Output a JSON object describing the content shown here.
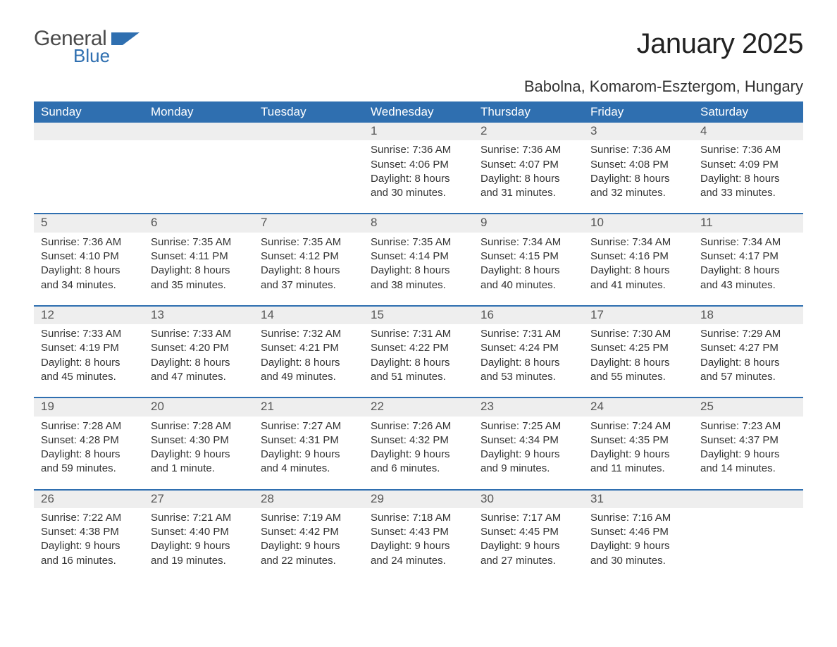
{
  "brand": {
    "name1": "General",
    "name2": "Blue",
    "mark_color": "#2f6fb0",
    "text_gray": "#4a4a4a"
  },
  "title": "January 2025",
  "location": "Babolna, Komarom-Esztergom, Hungary",
  "header_bg": "#2f6fb0",
  "header_fg": "#ffffff",
  "strip_bg": "#eeeeee",
  "border_color": "#2f6fb0",
  "day_names": [
    "Sunday",
    "Monday",
    "Tuesday",
    "Wednesday",
    "Thursday",
    "Friday",
    "Saturday"
  ],
  "weeks": [
    [
      null,
      null,
      null,
      {
        "d": "1",
        "sr": "Sunrise: 7:36 AM",
        "ss": "Sunset: 4:06 PM",
        "dl1": "Daylight: 8 hours",
        "dl2": "and 30 minutes."
      },
      {
        "d": "2",
        "sr": "Sunrise: 7:36 AM",
        "ss": "Sunset: 4:07 PM",
        "dl1": "Daylight: 8 hours",
        "dl2": "and 31 minutes."
      },
      {
        "d": "3",
        "sr": "Sunrise: 7:36 AM",
        "ss": "Sunset: 4:08 PM",
        "dl1": "Daylight: 8 hours",
        "dl2": "and 32 minutes."
      },
      {
        "d": "4",
        "sr": "Sunrise: 7:36 AM",
        "ss": "Sunset: 4:09 PM",
        "dl1": "Daylight: 8 hours",
        "dl2": "and 33 minutes."
      }
    ],
    [
      {
        "d": "5",
        "sr": "Sunrise: 7:36 AM",
        "ss": "Sunset: 4:10 PM",
        "dl1": "Daylight: 8 hours",
        "dl2": "and 34 minutes."
      },
      {
        "d": "6",
        "sr": "Sunrise: 7:35 AM",
        "ss": "Sunset: 4:11 PM",
        "dl1": "Daylight: 8 hours",
        "dl2": "and 35 minutes."
      },
      {
        "d": "7",
        "sr": "Sunrise: 7:35 AM",
        "ss": "Sunset: 4:12 PM",
        "dl1": "Daylight: 8 hours",
        "dl2": "and 37 minutes."
      },
      {
        "d": "8",
        "sr": "Sunrise: 7:35 AM",
        "ss": "Sunset: 4:14 PM",
        "dl1": "Daylight: 8 hours",
        "dl2": "and 38 minutes."
      },
      {
        "d": "9",
        "sr": "Sunrise: 7:34 AM",
        "ss": "Sunset: 4:15 PM",
        "dl1": "Daylight: 8 hours",
        "dl2": "and 40 minutes."
      },
      {
        "d": "10",
        "sr": "Sunrise: 7:34 AM",
        "ss": "Sunset: 4:16 PM",
        "dl1": "Daylight: 8 hours",
        "dl2": "and 41 minutes."
      },
      {
        "d": "11",
        "sr": "Sunrise: 7:34 AM",
        "ss": "Sunset: 4:17 PM",
        "dl1": "Daylight: 8 hours",
        "dl2": "and 43 minutes."
      }
    ],
    [
      {
        "d": "12",
        "sr": "Sunrise: 7:33 AM",
        "ss": "Sunset: 4:19 PM",
        "dl1": "Daylight: 8 hours",
        "dl2": "and 45 minutes."
      },
      {
        "d": "13",
        "sr": "Sunrise: 7:33 AM",
        "ss": "Sunset: 4:20 PM",
        "dl1": "Daylight: 8 hours",
        "dl2": "and 47 minutes."
      },
      {
        "d": "14",
        "sr": "Sunrise: 7:32 AM",
        "ss": "Sunset: 4:21 PM",
        "dl1": "Daylight: 8 hours",
        "dl2": "and 49 minutes."
      },
      {
        "d": "15",
        "sr": "Sunrise: 7:31 AM",
        "ss": "Sunset: 4:22 PM",
        "dl1": "Daylight: 8 hours",
        "dl2": "and 51 minutes."
      },
      {
        "d": "16",
        "sr": "Sunrise: 7:31 AM",
        "ss": "Sunset: 4:24 PM",
        "dl1": "Daylight: 8 hours",
        "dl2": "and 53 minutes."
      },
      {
        "d": "17",
        "sr": "Sunrise: 7:30 AM",
        "ss": "Sunset: 4:25 PM",
        "dl1": "Daylight: 8 hours",
        "dl2": "and 55 minutes."
      },
      {
        "d": "18",
        "sr": "Sunrise: 7:29 AM",
        "ss": "Sunset: 4:27 PM",
        "dl1": "Daylight: 8 hours",
        "dl2": "and 57 minutes."
      }
    ],
    [
      {
        "d": "19",
        "sr": "Sunrise: 7:28 AM",
        "ss": "Sunset: 4:28 PM",
        "dl1": "Daylight: 8 hours",
        "dl2": "and 59 minutes."
      },
      {
        "d": "20",
        "sr": "Sunrise: 7:28 AM",
        "ss": "Sunset: 4:30 PM",
        "dl1": "Daylight: 9 hours",
        "dl2": "and 1 minute."
      },
      {
        "d": "21",
        "sr": "Sunrise: 7:27 AM",
        "ss": "Sunset: 4:31 PM",
        "dl1": "Daylight: 9 hours",
        "dl2": "and 4 minutes."
      },
      {
        "d": "22",
        "sr": "Sunrise: 7:26 AM",
        "ss": "Sunset: 4:32 PM",
        "dl1": "Daylight: 9 hours",
        "dl2": "and 6 minutes."
      },
      {
        "d": "23",
        "sr": "Sunrise: 7:25 AM",
        "ss": "Sunset: 4:34 PM",
        "dl1": "Daylight: 9 hours",
        "dl2": "and 9 minutes."
      },
      {
        "d": "24",
        "sr": "Sunrise: 7:24 AM",
        "ss": "Sunset: 4:35 PM",
        "dl1": "Daylight: 9 hours",
        "dl2": "and 11 minutes."
      },
      {
        "d": "25",
        "sr": "Sunrise: 7:23 AM",
        "ss": "Sunset: 4:37 PM",
        "dl1": "Daylight: 9 hours",
        "dl2": "and 14 minutes."
      }
    ],
    [
      {
        "d": "26",
        "sr": "Sunrise: 7:22 AM",
        "ss": "Sunset: 4:38 PM",
        "dl1": "Daylight: 9 hours",
        "dl2": "and 16 minutes."
      },
      {
        "d": "27",
        "sr": "Sunrise: 7:21 AM",
        "ss": "Sunset: 4:40 PM",
        "dl1": "Daylight: 9 hours",
        "dl2": "and 19 minutes."
      },
      {
        "d": "28",
        "sr": "Sunrise: 7:19 AM",
        "ss": "Sunset: 4:42 PM",
        "dl1": "Daylight: 9 hours",
        "dl2": "and 22 minutes."
      },
      {
        "d": "29",
        "sr": "Sunrise: 7:18 AM",
        "ss": "Sunset: 4:43 PM",
        "dl1": "Daylight: 9 hours",
        "dl2": "and 24 minutes."
      },
      {
        "d": "30",
        "sr": "Sunrise: 7:17 AM",
        "ss": "Sunset: 4:45 PM",
        "dl1": "Daylight: 9 hours",
        "dl2": "and 27 minutes."
      },
      {
        "d": "31",
        "sr": "Sunrise: 7:16 AM",
        "ss": "Sunset: 4:46 PM",
        "dl1": "Daylight: 9 hours",
        "dl2": "and 30 minutes."
      },
      null
    ]
  ]
}
